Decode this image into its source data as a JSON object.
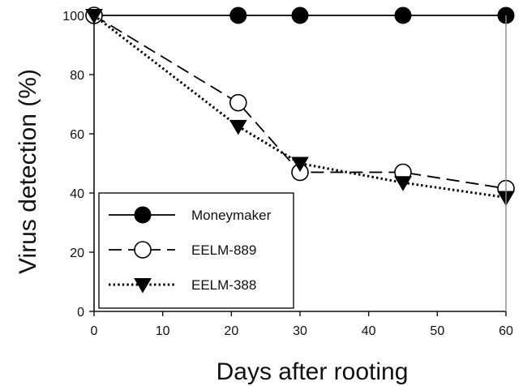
{
  "chart_data": {
    "type": "line",
    "xlabel": "Days after rooting",
    "ylabel": "Virus detection (%)",
    "xlim": [
      0,
      60
    ],
    "ylim": [
      0,
      100
    ],
    "xticks": [
      0,
      10,
      20,
      30,
      40,
      50,
      60
    ],
    "yticks": [
      0,
      20,
      40,
      60,
      80,
      100
    ],
    "grid": false,
    "legend_position": "bottom-left",
    "series": [
      {
        "name": "Moneymaker",
        "marker": "filled-circle",
        "line_style": "solid",
        "color": "#000000",
        "x": [
          0,
          21,
          30,
          45,
          60
        ],
        "y": [
          100,
          100,
          100,
          100,
          100
        ]
      },
      {
        "name": "EELM-889",
        "marker": "open-circle",
        "line_style": "dashed",
        "color": "#000000",
        "x": [
          0,
          21,
          30,
          45,
          60
        ],
        "y": [
          100,
          70.5,
          47,
          47,
          41.5
        ]
      },
      {
        "name": "EELM-388",
        "marker": "filled-triangle-down",
        "line_style": "dotted",
        "color": "#000000",
        "x": [
          0,
          21,
          30,
          45,
          60
        ],
        "y": [
          100,
          62.5,
          50,
          43.5,
          38.5
        ]
      }
    ]
  }
}
